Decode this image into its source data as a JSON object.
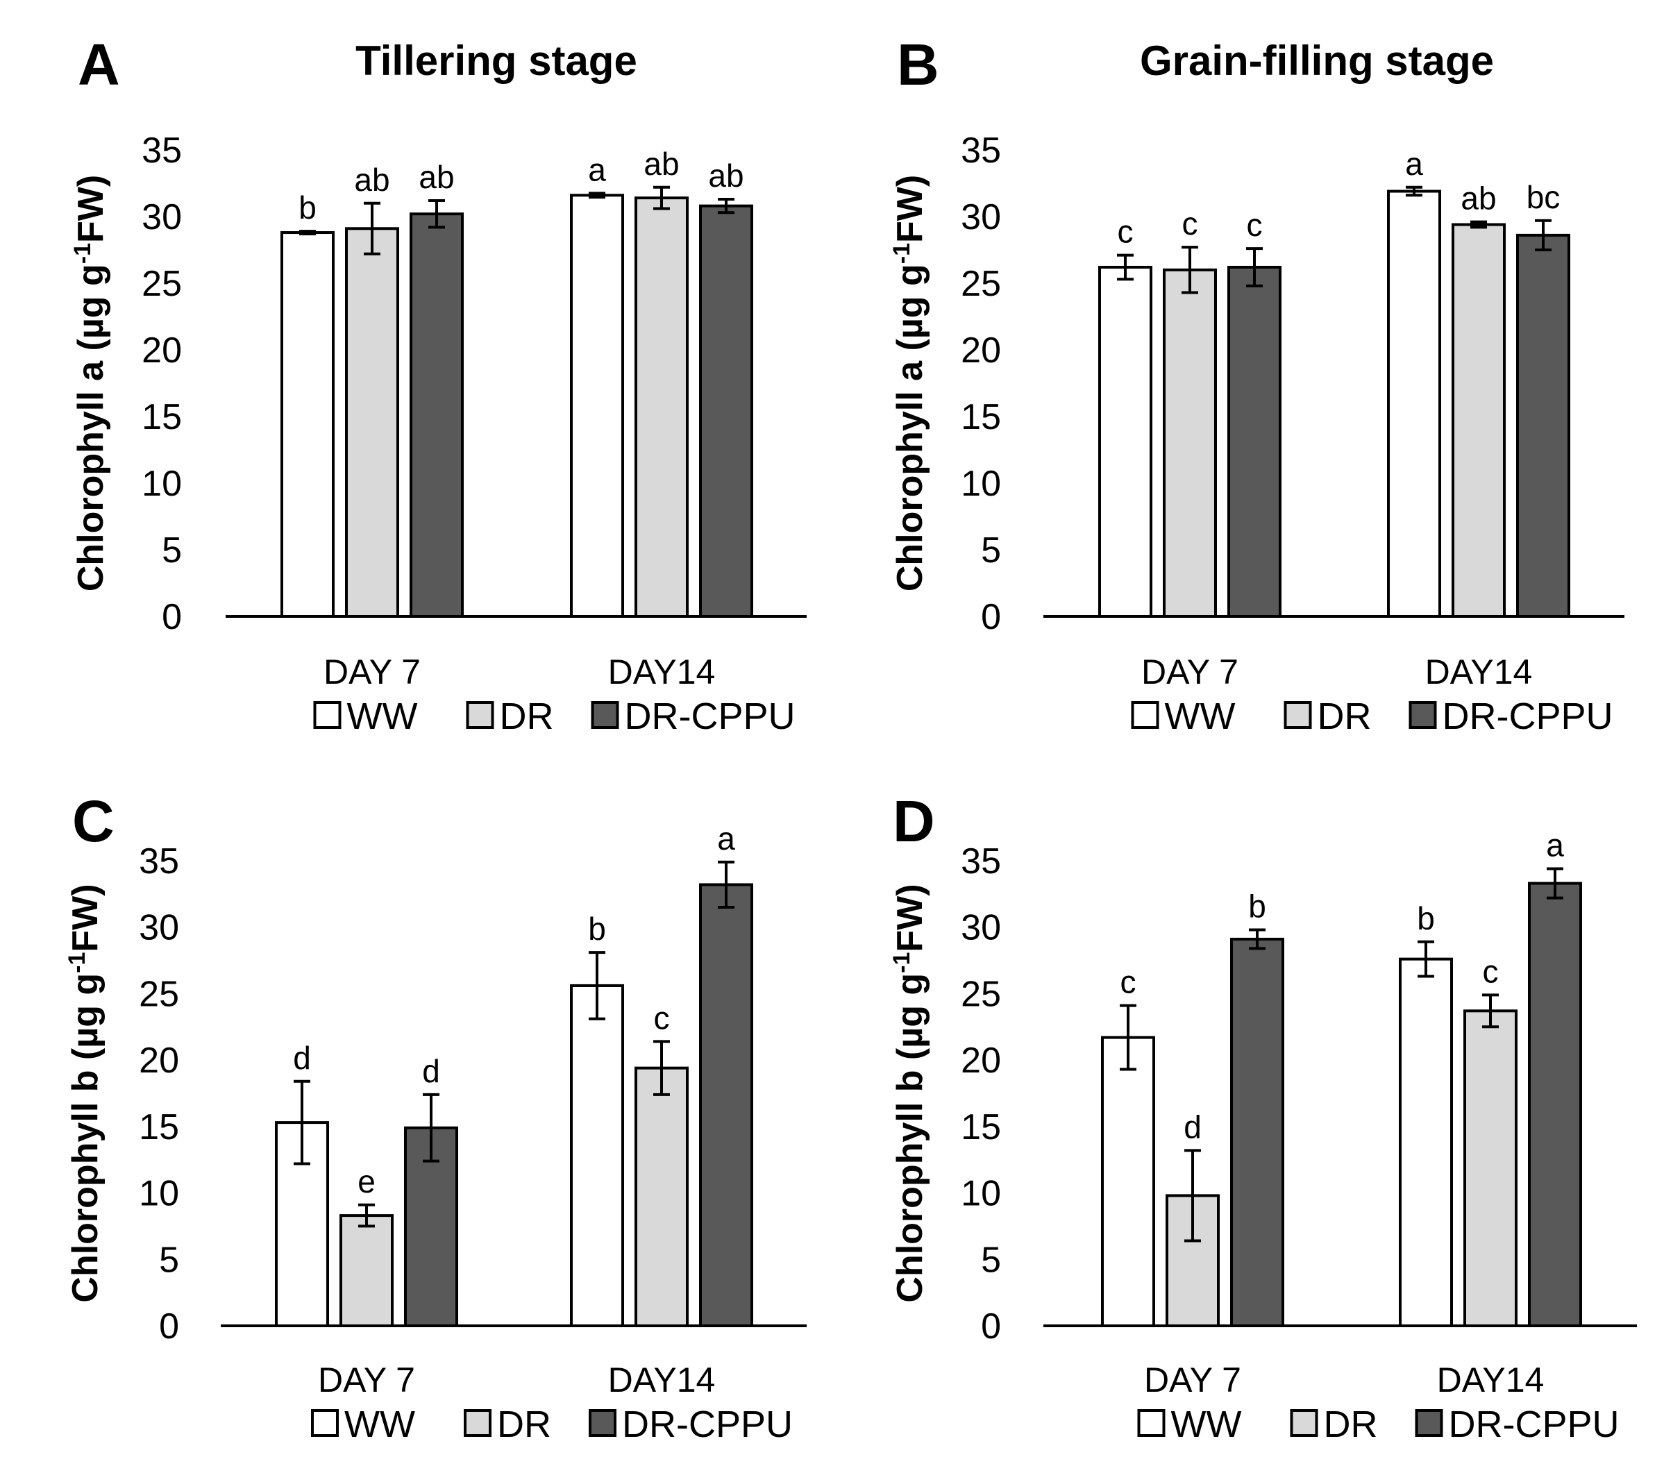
{
  "colors": {
    "WW": "#ffffff",
    "DR": "#d9d9d9",
    "DR-CPPU": "#595959",
    "stroke": "#000000"
  },
  "chart_data": [
    {
      "type": "bar",
      "panel": "A",
      "title": "Tillering stage",
      "ylabel": "Chlorophyll a (µg g⁻¹FW)",
      "ylabel_main": "Chlorophyll a (µg g",
      "ylabel_sup": "-1",
      "ylabel_tail": "FW)",
      "ylim": [
        0,
        35
      ],
      "yticks": [
        "0",
        "5",
        "10",
        "15",
        "20",
        "25",
        "30",
        "35"
      ],
      "categories": [
        "DAY 7",
        "DAY14"
      ],
      "series": [
        {
          "name": "WW",
          "values": [
            28.8,
            31.6
          ],
          "errors": [
            0.1,
            0.15
          ],
          "letters": [
            "b",
            "a"
          ]
        },
        {
          "name": "DR",
          "values": [
            29.1,
            31.4
          ],
          "errors": [
            1.9,
            0.8
          ],
          "letters": [
            "ab",
            "ab"
          ]
        },
        {
          "name": "DR-CPPU",
          "values": [
            30.2,
            30.8
          ],
          "errors": [
            1.0,
            0.5
          ],
          "letters": [
            "ab",
            "ab"
          ]
        }
      ]
    },
    {
      "type": "bar",
      "panel": "B",
      "title": "Grain-filling stage",
      "ylabel": "Chlorophyll a (µg g⁻¹FW)",
      "ylabel_main": "Chlorophyll a (µg g",
      "ylabel_sup": "-1",
      "ylabel_tail": "FW)",
      "ylim": [
        0,
        35
      ],
      "yticks": [
        "0",
        "5",
        "10",
        "15",
        "20",
        "25",
        "30",
        "35"
      ],
      "categories": [
        "DAY 7",
        "DAY14"
      ],
      "series": [
        {
          "name": "WW",
          "values": [
            26.2,
            31.9
          ],
          "errors": [
            0.9,
            0.3
          ],
          "letters": [
            "c",
            "a"
          ]
        },
        {
          "name": "DR",
          "values": [
            26.0,
            29.4
          ],
          "errors": [
            1.7,
            0.2
          ],
          "letters": [
            "c",
            "ab"
          ]
        },
        {
          "name": "DR-CPPU",
          "values": [
            26.2,
            28.6
          ],
          "errors": [
            1.4,
            1.1
          ],
          "letters": [
            "c",
            "bc"
          ]
        }
      ]
    },
    {
      "type": "bar",
      "panel": "C",
      "title": "",
      "ylabel": "Chlorophyll b (µg g⁻¹FW)",
      "ylabel_main": "Chlorophyll b (µg g",
      "ylabel_sup": "-1",
      "ylabel_tail": "FW)",
      "ylim": [
        0,
        35
      ],
      "yticks": [
        "0",
        "5",
        "10",
        "15",
        "20",
        "25",
        "30",
        "35"
      ],
      "categories": [
        "DAY 7",
        "DAY14"
      ],
      "series": [
        {
          "name": "WW",
          "values": [
            15.3,
            25.6
          ],
          "errors": [
            3.1,
            2.5
          ],
          "letters": [
            "d",
            "b"
          ]
        },
        {
          "name": "DR",
          "values": [
            8.3,
            19.4
          ],
          "errors": [
            0.8,
            2.0
          ],
          "letters": [
            "e",
            "c"
          ]
        },
        {
          "name": "DR-CPPU",
          "values": [
            14.9,
            33.2
          ],
          "errors": [
            2.5,
            1.7
          ],
          "letters": [
            "d",
            "a"
          ]
        }
      ]
    },
    {
      "type": "bar",
      "panel": "D",
      "title": "",
      "ylabel": "Chlorophyll b (µg g⁻¹FW)",
      "ylabel_main": "Chlorophyll b (µg g",
      "ylabel_sup": "-1",
      "ylabel_tail": "FW)",
      "ylim": [
        0,
        35
      ],
      "yticks": [
        "0",
        "5",
        "10",
        "15",
        "20",
        "25",
        "30",
        "35"
      ],
      "categories": [
        "DAY 7",
        "DAY14"
      ],
      "series": [
        {
          "name": "WW",
          "values": [
            21.7,
            27.6
          ],
          "errors": [
            2.4,
            1.3
          ],
          "letters": [
            "c",
            "b"
          ]
        },
        {
          "name": "DR",
          "values": [
            9.8,
            23.7
          ],
          "errors": [
            3.4,
            1.2
          ],
          "letters": [
            "d",
            "c"
          ]
        },
        {
          "name": "DR-CPPU",
          "values": [
            29.1,
            33.3
          ],
          "errors": [
            0.7,
            1.1
          ],
          "letters": [
            "b",
            "a"
          ]
        }
      ]
    }
  ],
  "legend": [
    "WW",
    "DR",
    "DR-CPPU"
  ]
}
